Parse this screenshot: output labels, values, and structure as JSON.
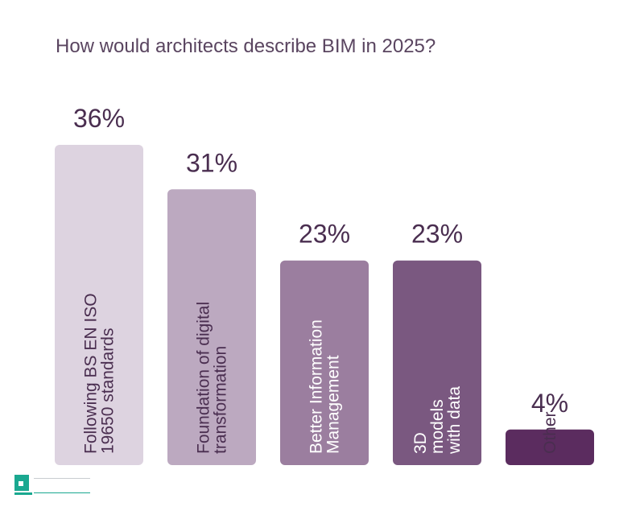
{
  "chart_data": {
    "type": "bar",
    "title": "How would architects describe BIM in 2025?",
    "categories": [
      [
        "Following BS EN ISO",
        "19650 standards"
      ],
      [
        "Foundation of digital",
        "transformation"
      ],
      [
        "Better Information",
        "Management"
      ],
      [
        "3D",
        "models",
        "with data"
      ],
      [
        "Other"
      ]
    ],
    "values": [
      36,
      31,
      23,
      23,
      4
    ],
    "value_labels": [
      "36%",
      "31%",
      "23%",
      "23%",
      "4%"
    ],
    "colors": [
      "#ddd3e0",
      "#bca9c0",
      "#9b7e9f",
      "#7a5880",
      "#5b2c5f"
    ],
    "label_colors": [
      "#4a2e50",
      "#4a2e50",
      "#ffffff",
      "#ffffff",
      "#4a2e50"
    ],
    "xlabel": "",
    "ylabel": "",
    "ylim": [
      0,
      36
    ],
    "grid": false
  },
  "logo": {
    "text": "setavin",
    "subtext": "Art & Architecture Network",
    "color": "#1aa890"
  }
}
